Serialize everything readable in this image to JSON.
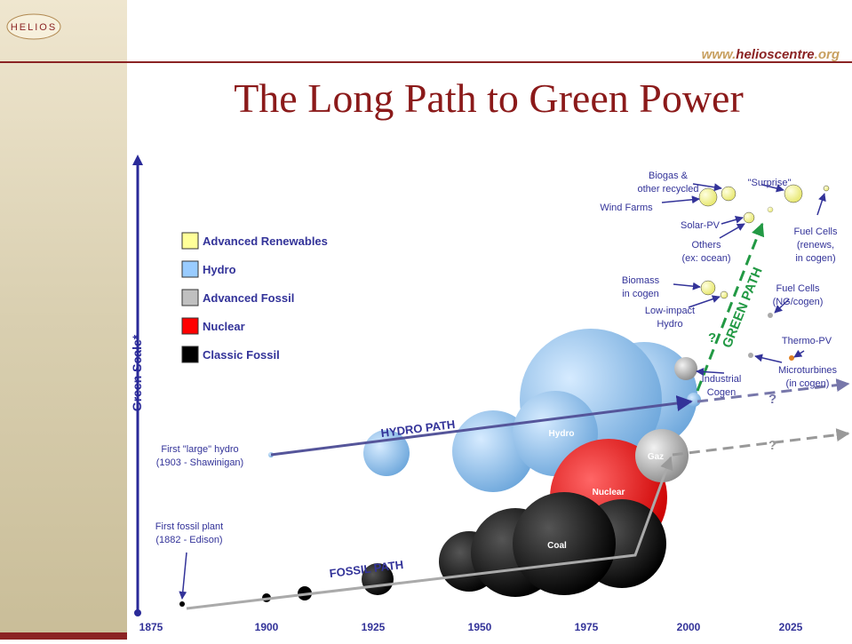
{
  "header": {
    "logo": "HELIOS",
    "url_prefix": "www.",
    "url_name": "helioscentre",
    "url_suffix": ".org",
    "title": "The Long Path to Green Power"
  },
  "y_axis_label": "Green Scale*",
  "x_axis_labels": [
    "1875",
    "1900",
    "1925",
    "1950",
    "1975",
    "2000",
    "2025"
  ],
  "legend": [
    {
      "label": "Advanced Renewables",
      "color": "#ffff99"
    },
    {
      "label": "Hydro",
      "color": "#99ccff"
    },
    {
      "label": "Advanced Fossil",
      "color": "#c0c0c0"
    },
    {
      "label": "Nuclear",
      "color": "#ff0000"
    },
    {
      "label": "Classic Fossil",
      "color": "#000000"
    }
  ],
  "paths": {
    "hydro": "HYDRO PATH",
    "fossil": "FOSSIL PATH",
    "green": "GREEN PATH"
  },
  "bubble_labels": {
    "hydro": "Hydro",
    "nuclear": "Nuclear",
    "gaz": "Gaz",
    "coal": "Coal"
  },
  "question_marks": [
    "?",
    "?",
    "?"
  ],
  "annotations": [
    {
      "lines": [
        "First \"large\" hydro",
        "(1903 - Shawinigan)"
      ]
    },
    {
      "lines": [
        "First fossil plant",
        "(1882 - Edison)"
      ]
    },
    {
      "lines": [
        "Biogas &",
        "other recycled"
      ]
    },
    {
      "lines": [
        "Wind Farms"
      ]
    },
    {
      "lines": [
        "\"Surprise\""
      ]
    },
    {
      "lines": [
        "Solar-PV"
      ]
    },
    {
      "lines": [
        "Others",
        "(ex: ocean)"
      ]
    },
    {
      "lines": [
        "Fuel Cells",
        "(renews,",
        "in cogen)"
      ]
    },
    {
      "lines": [
        "Biomass",
        "in cogen"
      ]
    },
    {
      "lines": [
        "Low-impact",
        "Hydro"
      ]
    },
    {
      "lines": [
        "Fuel Cells",
        "(NG/cogen)"
      ]
    },
    {
      "lines": [
        "Thermo-PV"
      ]
    },
    {
      "lines": [
        "Microturbines",
        "(in cogen)"
      ]
    },
    {
      "lines": [
        "Industrial",
        "Cogen"
      ]
    }
  ]
}
